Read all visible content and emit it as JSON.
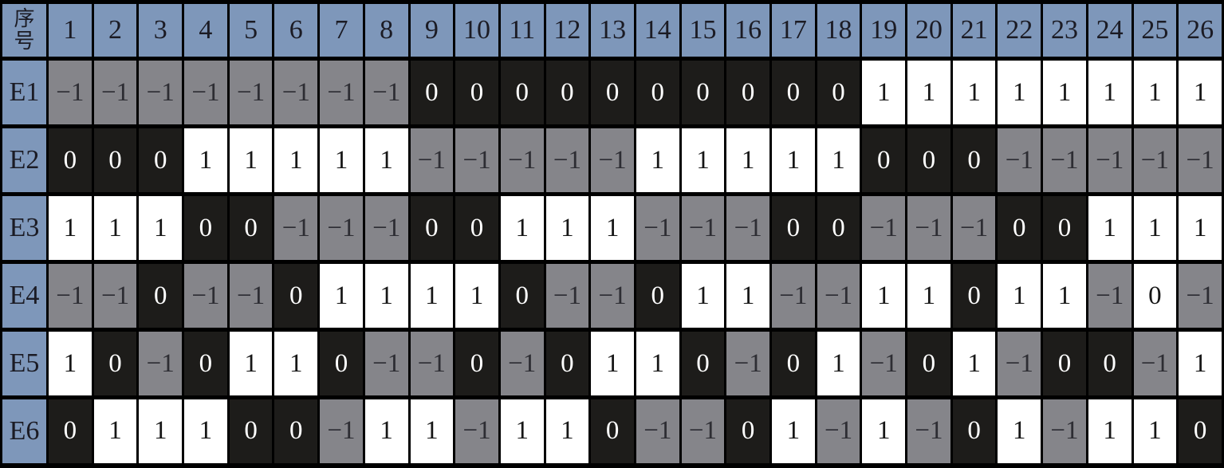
{
  "chart_data": {
    "type": "table",
    "corner_label": "序号",
    "columns": [
      "1",
      "2",
      "3",
      "4",
      "5",
      "6",
      "7",
      "8",
      "9",
      "10",
      "11",
      "12",
      "13",
      "14",
      "15",
      "16",
      "17",
      "18",
      "19",
      "20",
      "21",
      "22",
      "23",
      "24",
      "25",
      "26"
    ],
    "rows": [
      {
        "label": "E1",
        "values": [
          -1,
          -1,
          -1,
          -1,
          -1,
          -1,
          -1,
          -1,
          0,
          0,
          0,
          0,
          0,
          0,
          0,
          0,
          0,
          0,
          1,
          1,
          1,
          1,
          1,
          1,
          1,
          1
        ],
        "cell_bg": [
          "g",
          "g",
          "g",
          "g",
          "g",
          "g",
          "g",
          "g",
          "k",
          "k",
          "k",
          "k",
          "k",
          "k",
          "k",
          "k",
          "k",
          "k",
          "w",
          "w",
          "w",
          "w",
          "w",
          "w",
          "w",
          "w"
        ]
      },
      {
        "label": "E2",
        "values": [
          0,
          0,
          0,
          1,
          1,
          1,
          1,
          1,
          -1,
          -1,
          -1,
          -1,
          -1,
          1,
          1,
          1,
          1,
          1,
          0,
          0,
          0,
          -1,
          -1,
          -1,
          -1,
          -1
        ],
        "cell_bg": [
          "k",
          "k",
          "k",
          "w",
          "w",
          "w",
          "w",
          "w",
          "g",
          "g",
          "g",
          "g",
          "g",
          "w",
          "w",
          "w",
          "w",
          "w",
          "k",
          "k",
          "k",
          "g",
          "g",
          "g",
          "g",
          "g"
        ]
      },
      {
        "label": "E3",
        "values": [
          1,
          1,
          1,
          0,
          0,
          -1,
          -1,
          -1,
          0,
          0,
          1,
          1,
          1,
          -1,
          -1,
          -1,
          0,
          0,
          -1,
          -1,
          -1,
          0,
          0,
          1,
          1,
          1
        ],
        "cell_bg": [
          "w",
          "w",
          "w",
          "k",
          "k",
          "g",
          "g",
          "g",
          "k",
          "k",
          "w",
          "w",
          "w",
          "g",
          "g",
          "g",
          "k",
          "k",
          "g",
          "g",
          "g",
          "k",
          "k",
          "w",
          "w",
          "w"
        ]
      },
      {
        "label": "E4",
        "values": [
          -1,
          -1,
          0,
          -1,
          -1,
          0,
          1,
          1,
          1,
          1,
          0,
          -1,
          -1,
          0,
          1,
          1,
          -1,
          -1,
          1,
          1,
          0,
          1,
          1,
          -1,
          0,
          -1
        ],
        "cell_bg": [
          "g",
          "g",
          "k",
          "g",
          "g",
          "k",
          "w",
          "w",
          "w",
          "w",
          "k",
          "g",
          "g",
          "k",
          "w",
          "w",
          "g",
          "g",
          "w",
          "w",
          "k",
          "w",
          "w",
          "g",
          "w",
          "g"
        ]
      },
      {
        "label": "E5",
        "values": [
          1,
          0,
          -1,
          0,
          1,
          1,
          0,
          -1,
          -1,
          0,
          -1,
          0,
          1,
          1,
          0,
          -1,
          0,
          1,
          -1,
          0,
          1,
          -1,
          0,
          0,
          -1,
          1
        ],
        "cell_bg": [
          "w",
          "k",
          "g",
          "k",
          "w",
          "w",
          "k",
          "g",
          "g",
          "k",
          "g",
          "k",
          "w",
          "w",
          "k",
          "g",
          "k",
          "w",
          "g",
          "k",
          "w",
          "g",
          "k",
          "k",
          "g",
          "w"
        ]
      },
      {
        "label": "E6",
        "values": [
          0,
          1,
          1,
          1,
          0,
          0,
          -1,
          1,
          1,
          -1,
          1,
          1,
          0,
          -1,
          -1,
          0,
          1,
          -1,
          1,
          -1,
          0,
          1,
          -1,
          1,
          1,
          0
        ],
        "cell_bg": [
          "k",
          "w",
          "w",
          "w",
          "k",
          "k",
          "g",
          "w",
          "w",
          "g",
          "w",
          "w",
          "k",
          "g",
          "g",
          "k",
          "w",
          "g",
          "w",
          "g",
          "k",
          "w",
          "g",
          "w",
          "w",
          "k"
        ]
      }
    ],
    "value_color_map": {
      "-1": "gray",
      "0": "black",
      "1": "white"
    },
    "color_exception_note": "Row E4, column 25 has value 0 on a white cell (deviates from value_color_map)",
    "layout": {
      "grid": "on",
      "legend": "none"
    }
  },
  "palette": {
    "header_bg": "#7e97ba",
    "header_text": "#1b1b24",
    "cell_gray_bg": "#85858a",
    "cell_gray_text": "#2d2d33",
    "cell_black_bg": "#1d1c1a",
    "cell_black_text": "#ffffff",
    "cell_white_bg": "#ffffff",
    "cell_white_text": "#161616",
    "border": "#000000"
  }
}
